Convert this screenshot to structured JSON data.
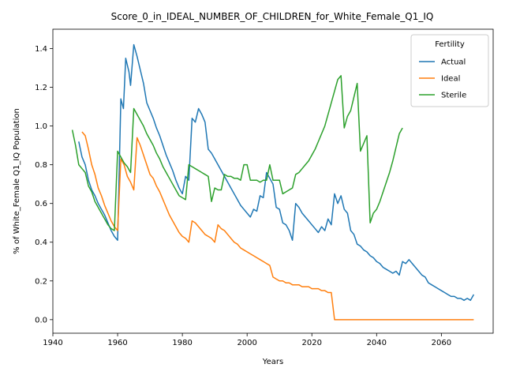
{
  "chart_data": {
    "type": "line",
    "title": "Score_0_in_IDEAL_NUMBER_OF_CHILDREN_for_White_Female_Q1_IQ",
    "xlabel": "Years",
    "ylabel": "% of White_Female Q1_IQ Population",
    "xlim": [
      1940,
      2076
    ],
    "ylim": [
      -0.07,
      1.5
    ],
    "xticks": [
      1940,
      1960,
      1980,
      2000,
      2020,
      2040,
      2060
    ],
    "yticks": [
      0.0,
      0.2,
      0.4,
      0.6,
      0.8,
      1.0,
      1.2,
      1.4
    ],
    "xtick_labels": [
      "1940",
      "1960",
      "1980",
      "2000",
      "2020",
      "2040",
      "2060"
    ],
    "ytick_labels": [
      "0.0",
      "0.2",
      "0.4",
      "0.6",
      "0.8",
      "1.0",
      "1.2",
      "1.4"
    ],
    "grid": false,
    "legend": {
      "title": "Fertility",
      "placement": "top-right"
    },
    "series": [
      {
        "name": "Actual",
        "color": "#1f77b4",
        "points": [
          [
            1948,
            0.92
          ],
          [
            1949,
            0.84
          ],
          [
            1950,
            0.8
          ],
          [
            1951,
            0.72
          ],
          [
            1952,
            0.67
          ],
          [
            1953,
            0.64
          ],
          [
            1954,
            0.6
          ],
          [
            1955,
            0.57
          ],
          [
            1956,
            0.54
          ],
          [
            1957,
            0.5
          ],
          [
            1958,
            0.46
          ],
          [
            1959,
            0.43
          ],
          [
            1960,
            0.41
          ],
          [
            1961,
            1.14
          ],
          [
            1961.8,
            1.09
          ],
          [
            1962.5,
            1.35
          ],
          [
            1963.5,
            1.28
          ],
          [
            1964,
            1.21
          ],
          [
            1965,
            1.42
          ],
          [
            1966,
            1.36
          ],
          [
            1967,
            1.29
          ],
          [
            1968,
            1.22
          ],
          [
            1969,
            1.12
          ],
          [
            1970,
            1.08
          ],
          [
            1971,
            1.04
          ],
          [
            1972,
            0.99
          ],
          [
            1973,
            0.95
          ],
          [
            1974,
            0.9
          ],
          [
            1975,
            0.85
          ],
          [
            1976,
            0.81
          ],
          [
            1977,
            0.77
          ],
          [
            1978,
            0.72
          ],
          [
            1979,
            0.68
          ],
          [
            1980,
            0.65
          ],
          [
            1981,
            0.74
          ],
          [
            1982,
            0.72
          ],
          [
            1983,
            1.04
          ],
          [
            1984,
            1.02
          ],
          [
            1985,
            1.09
          ],
          [
            1986,
            1.06
          ],
          [
            1987,
            1.02
          ],
          [
            1988,
            0.88
          ],
          [
            1989,
            0.86
          ],
          [
            1990,
            0.83
          ],
          [
            1991,
            0.8
          ],
          [
            1992,
            0.77
          ],
          [
            1993,
            0.74
          ],
          [
            1994,
            0.71
          ],
          [
            1995,
            0.68
          ],
          [
            1996,
            0.65
          ],
          [
            1997,
            0.62
          ],
          [
            1998,
            0.59
          ],
          [
            1999,
            0.57
          ],
          [
            2000,
            0.55
          ],
          [
            2001,
            0.53
          ],
          [
            2002,
            0.57
          ],
          [
            2003,
            0.56
          ],
          [
            2004,
            0.64
          ],
          [
            2005,
            0.63
          ],
          [
            2006,
            0.76
          ],
          [
            2007,
            0.73
          ],
          [
            2008,
            0.7
          ],
          [
            2009,
            0.58
          ],
          [
            2010,
            0.57
          ],
          [
            2011,
            0.5
          ],
          [
            2012,
            0.49
          ],
          [
            2013,
            0.46
          ],
          [
            2014,
            0.41
          ],
          [
            2015,
            0.6
          ],
          [
            2016,
            0.58
          ],
          [
            2017,
            0.55
          ],
          [
            2018,
            0.53
          ],
          [
            2019,
            0.51
          ],
          [
            2020,
            0.49
          ],
          [
            2021,
            0.47
          ],
          [
            2022,
            0.45
          ],
          [
            2023,
            0.48
          ],
          [
            2024,
            0.46
          ],
          [
            2025,
            0.52
          ],
          [
            2026,
            0.49
          ],
          [
            2027,
            0.65
          ],
          [
            2028,
            0.6
          ],
          [
            2029,
            0.64
          ],
          [
            2030,
            0.57
          ],
          [
            2031,
            0.55
          ],
          [
            2032,
            0.46
          ],
          [
            2033,
            0.44
          ],
          [
            2034,
            0.39
          ],
          [
            2035,
            0.38
          ],
          [
            2036,
            0.36
          ],
          [
            2037,
            0.35
          ],
          [
            2038,
            0.33
          ],
          [
            2039,
            0.32
          ],
          [
            2040,
            0.3
          ],
          [
            2041,
            0.29
          ],
          [
            2042,
            0.27
          ],
          [
            2043,
            0.26
          ],
          [
            2044,
            0.25
          ],
          [
            2045,
            0.24
          ],
          [
            2046,
            0.25
          ],
          [
            2047,
            0.23
          ],
          [
            2048,
            0.3
          ],
          [
            2049,
            0.29
          ],
          [
            2050,
            0.31
          ],
          [
            2051,
            0.29
          ],
          [
            2052,
            0.27
          ],
          [
            2053,
            0.25
          ],
          [
            2054,
            0.23
          ],
          [
            2055,
            0.22
          ],
          [
            2056,
            0.19
          ],
          [
            2057,
            0.18
          ],
          [
            2058,
            0.17
          ],
          [
            2059,
            0.16
          ],
          [
            2060,
            0.15
          ],
          [
            2061,
            0.14
          ],
          [
            2062,
            0.13
          ],
          [
            2063,
            0.12
          ],
          [
            2064,
            0.12
          ],
          [
            2065,
            0.11
          ],
          [
            2066,
            0.11
          ],
          [
            2067,
            0.1
          ],
          [
            2068,
            0.11
          ],
          [
            2069,
            0.1
          ],
          [
            2070,
            0.13
          ]
        ]
      },
      {
        "name": "Ideal",
        "color": "#ff7f0e",
        "points": [
          [
            1949,
            0.97
          ],
          [
            1950,
            0.95
          ],
          [
            1951,
            0.88
          ],
          [
            1952,
            0.8
          ],
          [
            1953,
            0.75
          ],
          [
            1954,
            0.68
          ],
          [
            1955,
            0.64
          ],
          [
            1956,
            0.59
          ],
          [
            1957,
            0.55
          ],
          [
            1958,
            0.51
          ],
          [
            1959,
            0.48
          ],
          [
            1960,
            0.46
          ],
          [
            1961,
            0.83
          ],
          [
            1962,
            0.8
          ],
          [
            1963,
            0.74
          ],
          [
            1964,
            0.71
          ],
          [
            1965,
            0.67
          ],
          [
            1966,
            0.94
          ],
          [
            1967,
            0.9
          ],
          [
            1968,
            0.85
          ],
          [
            1969,
            0.8
          ],
          [
            1970,
            0.75
          ],
          [
            1971,
            0.73
          ],
          [
            1972,
            0.69
          ],
          [
            1973,
            0.66
          ],
          [
            1974,
            0.62
          ],
          [
            1975,
            0.58
          ],
          [
            1976,
            0.54
          ],
          [
            1977,
            0.51
          ],
          [
            1978,
            0.48
          ],
          [
            1979,
            0.45
          ],
          [
            1980,
            0.43
          ],
          [
            1981,
            0.42
          ],
          [
            1982,
            0.4
          ],
          [
            1983,
            0.51
          ],
          [
            1984,
            0.5
          ],
          [
            1985,
            0.48
          ],
          [
            1986,
            0.46
          ],
          [
            1987,
            0.44
          ],
          [
            1988,
            0.43
          ],
          [
            1989,
            0.42
          ],
          [
            1990,
            0.4
          ],
          [
            1991,
            0.49
          ],
          [
            1992,
            0.47
          ],
          [
            1993,
            0.46
          ],
          [
            1994,
            0.44
          ],
          [
            1995,
            0.42
          ],
          [
            1996,
            0.4
          ],
          [
            1997,
            0.39
          ],
          [
            1998,
            0.37
          ],
          [
            1999,
            0.36
          ],
          [
            2000,
            0.35
          ],
          [
            2001,
            0.34
          ],
          [
            2002,
            0.33
          ],
          [
            2003,
            0.32
          ],
          [
            2004,
            0.31
          ],
          [
            2005,
            0.3
          ],
          [
            2006,
            0.29
          ],
          [
            2007,
            0.28
          ],
          [
            2008,
            0.22
          ],
          [
            2009,
            0.21
          ],
          [
            2010,
            0.2
          ],
          [
            2011,
            0.2
          ],
          [
            2012,
            0.19
          ],
          [
            2013,
            0.19
          ],
          [
            2014,
            0.18
          ],
          [
            2015,
            0.18
          ],
          [
            2016,
            0.18
          ],
          [
            2017,
            0.17
          ],
          [
            2018,
            0.17
          ],
          [
            2019,
            0.17
          ],
          [
            2020,
            0.16
          ],
          [
            2021,
            0.16
          ],
          [
            2022,
            0.16
          ],
          [
            2023,
            0.15
          ],
          [
            2024,
            0.15
          ],
          [
            2025,
            0.14
          ],
          [
            2026,
            0.14
          ],
          [
            2027,
            0.0
          ],
          [
            2030,
            0.0
          ],
          [
            2040,
            0.0
          ],
          [
            2050,
            0.0
          ],
          [
            2060,
            0.0
          ],
          [
            2070,
            0.0
          ]
        ]
      },
      {
        "name": "Sterile",
        "color": "#2ca02c",
        "points": [
          [
            1946,
            0.98
          ],
          [
            1947,
            0.9
          ],
          [
            1948,
            0.8
          ],
          [
            1949,
            0.78
          ],
          [
            1950,
            0.76
          ],
          [
            1951,
            0.69
          ],
          [
            1952,
            0.66
          ],
          [
            1953,
            0.61
          ],
          [
            1954,
            0.58
          ],
          [
            1955,
            0.55
          ],
          [
            1956,
            0.52
          ],
          [
            1957,
            0.49
          ],
          [
            1958,
            0.47
          ],
          [
            1959,
            0.46
          ],
          [
            1960,
            0.87
          ],
          [
            1961,
            0.84
          ],
          [
            1962,
            0.81
          ],
          [
            1963,
            0.79
          ],
          [
            1964,
            0.76
          ],
          [
            1965,
            1.09
          ],
          [
            1966,
            1.06
          ],
          [
            1967,
            1.03
          ],
          [
            1968,
            1.0
          ],
          [
            1969,
            0.96
          ],
          [
            1970,
            0.93
          ],
          [
            1971,
            0.9
          ],
          [
            1972,
            0.86
          ],
          [
            1973,
            0.83
          ],
          [
            1974,
            0.79
          ],
          [
            1975,
            0.76
          ],
          [
            1976,
            0.73
          ],
          [
            1977,
            0.7
          ],
          [
            1978,
            0.67
          ],
          [
            1979,
            0.64
          ],
          [
            1980,
            0.63
          ],
          [
            1981,
            0.62
          ],
          [
            1982,
            0.8
          ],
          [
            1983,
            0.79
          ],
          [
            1984,
            0.78
          ],
          [
            1985,
            0.77
          ],
          [
            1986,
            0.76
          ],
          [
            1987,
            0.75
          ],
          [
            1988,
            0.74
          ],
          [
            1989,
            0.61
          ],
          [
            1990,
            0.68
          ],
          [
            1991,
            0.67
          ],
          [
            1992,
            0.67
          ],
          [
            1993,
            0.75
          ],
          [
            1994,
            0.74
          ],
          [
            1995,
            0.74
          ],
          [
            1996,
            0.73
          ],
          [
            1997,
            0.73
          ],
          [
            1998,
            0.72
          ],
          [
            1999,
            0.8
          ],
          [
            2000,
            0.8
          ],
          [
            2001,
            0.72
          ],
          [
            2002,
            0.72
          ],
          [
            2003,
            0.72
          ],
          [
            2004,
            0.71
          ],
          [
            2005,
            0.72
          ],
          [
            2006,
            0.72
          ],
          [
            2007,
            0.8
          ],
          [
            2008,
            0.72
          ],
          [
            2009,
            0.72
          ],
          [
            2010,
            0.72
          ],
          [
            2011,
            0.65
          ],
          [
            2012,
            0.66
          ],
          [
            2013,
            0.67
          ],
          [
            2014,
            0.68
          ],
          [
            2015,
            0.75
          ],
          [
            2016,
            0.76
          ],
          [
            2017,
            0.78
          ],
          [
            2018,
            0.8
          ],
          [
            2019,
            0.82
          ],
          [
            2020,
            0.85
          ],
          [
            2021,
            0.88
          ],
          [
            2022,
            0.92
          ],
          [
            2023,
            0.96
          ],
          [
            2024,
            1.0
          ],
          [
            2025,
            1.06
          ],
          [
            2026,
            1.12
          ],
          [
            2027,
            1.18
          ],
          [
            2028,
            1.24
          ],
          [
            2029,
            1.26
          ],
          [
            2030,
            0.99
          ],
          [
            2031,
            1.05
          ],
          [
            2032,
            1.08
          ],
          [
            2033,
            1.15
          ],
          [
            2034,
            1.22
          ],
          [
            2035,
            0.87
          ],
          [
            2036,
            0.91
          ],
          [
            2037,
            0.95
          ],
          [
            2038,
            0.5
          ],
          [
            2039,
            0.55
          ],
          [
            2040,
            0.57
          ],
          [
            2041,
            0.61
          ],
          [
            2042,
            0.66
          ],
          [
            2043,
            0.71
          ],
          [
            2044,
            0.76
          ],
          [
            2045,
            0.82
          ],
          [
            2046,
            0.89
          ],
          [
            2047,
            0.96
          ],
          [
            2048,
            0.99
          ]
        ]
      }
    ]
  }
}
